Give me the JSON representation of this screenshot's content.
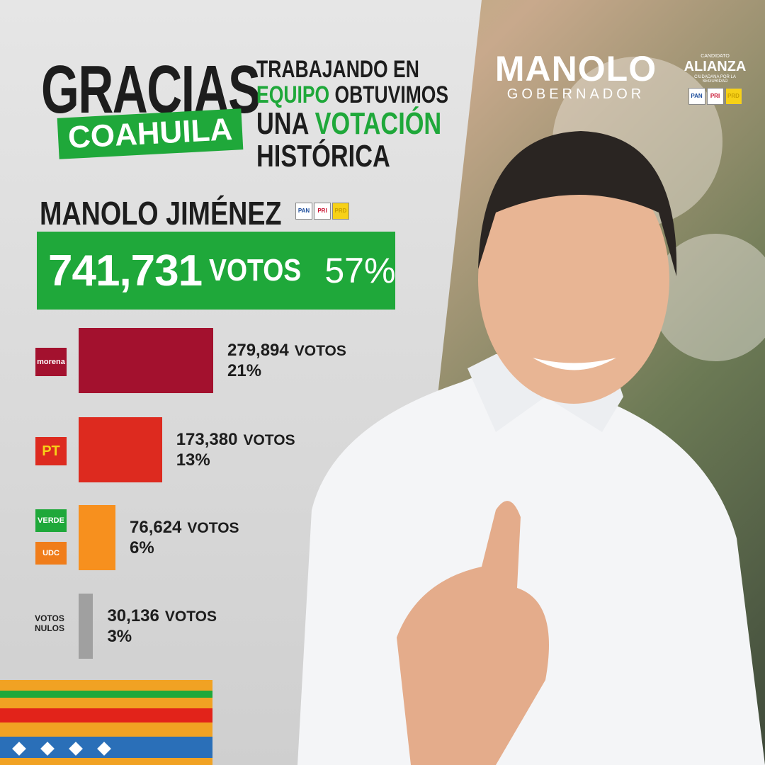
{
  "header": {
    "title": "GRACIAS",
    "subtitle": "COAHUILA"
  },
  "message": {
    "line1": "TRABAJANDO EN",
    "line2a": "EQUIPO",
    "line2b": "OBTUVIMOS",
    "line3a": "UNA",
    "line3b": "VOTACIÓN",
    "line4": "HISTÓRICA"
  },
  "brand": {
    "name": "MANOLO",
    "role": "GOBERNADOR",
    "alliance_label": "CANDIDATO",
    "alliance": "ALIANZA",
    "alliance_sub": "CIUDADANA POR LA SEGURIDAD",
    "parties": [
      "PAN",
      "PRI",
      "PRD"
    ]
  },
  "winner": {
    "name": "MANOLO JIMÉNEZ",
    "parties": [
      "PAN",
      "PRI",
      "PRD"
    ],
    "votes": 741731,
    "votes_label": "741,731",
    "unit": "VOTOS",
    "percent": 57,
    "percent_label": "57%",
    "color": "#1fa83a"
  },
  "chart_data": {
    "type": "bar",
    "orientation": "horizontal",
    "unit": "VOTOS",
    "categories": [
      [
        "morena"
      ],
      [
        "PT"
      ],
      [
        "VERDE",
        "UDC"
      ],
      [
        "VOTOS NULOS"
      ]
    ],
    "values": [
      279894,
      173380,
      76624,
      30136
    ],
    "value_labels": [
      "279,894",
      "173,380",
      "76,624",
      "30,136"
    ],
    "percents": [
      21,
      13,
      6,
      3
    ],
    "percent_labels": [
      "21%",
      "13%",
      "6%",
      "3%"
    ],
    "colors": [
      "#a3112e",
      "#dd2a1f",
      "#f7901e",
      "#a0a0a0"
    ]
  }
}
